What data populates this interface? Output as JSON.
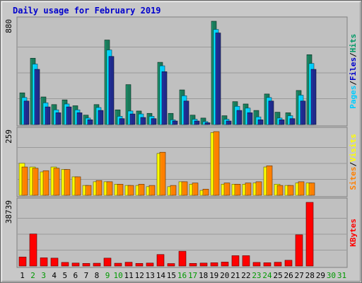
{
  "title": "Daily usage for February 2019",
  "colors": {
    "title": "#0000cc",
    "pages": "#1a7a5a",
    "files": "#00ccff",
    "hits": "#009966",
    "visits": "#ffff00",
    "sites": "#ff8000",
    "kbytes": "#ff0000",
    "weekday_label": "#000000",
    "weekend_label": "#009900",
    "panel_bg": "#c0c0c0"
  },
  "chart_data": [
    {
      "type": "bar",
      "panel": "hits-files-pages",
      "ylim": [
        0,
        880
      ],
      "max_label": "880",
      "axis_labels": [
        "Pages",
        "/",
        "Files",
        "/",
        "Hits"
      ],
      "categories": [
        "1",
        "2",
        "3",
        "4",
        "5",
        "6",
        "7",
        "8",
        "9",
        "10",
        "11",
        "12",
        "13",
        "14",
        "15",
        "16",
        "17",
        "18",
        "19",
        "20",
        "21",
        "22",
        "23",
        "24",
        "25",
        "26",
        "27",
        "28",
        "29",
        "30",
        "31"
      ],
      "series": [
        {
          "name": "Hits",
          "values": [
            270,
            565,
            235,
            170,
            210,
            160,
            80,
            170,
            720,
            125,
            340,
            115,
            95,
            530,
            95,
            295,
            80,
            55,
            880,
            75,
            195,
            175,
            120,
            260,
            105,
            100,
            290,
            595,
            0,
            0,
            0
          ]
        },
        {
          "name": "Files",
          "values": [
            230,
            515,
            185,
            125,
            175,
            125,
            55,
            145,
            635,
            70,
            115,
            90,
            70,
            500,
            40,
            245,
            45,
            25,
            810,
            45,
            155,
            140,
            65,
            230,
            55,
            75,
            250,
            520,
            0,
            0,
            0
          ]
        },
        {
          "name": "Pages",
          "values": [
            200,
            470,
            150,
            100,
            150,
            100,
            40,
            120,
            580,
            50,
            90,
            60,
            50,
            450,
            30,
            200,
            30,
            15,
            780,
            30,
            120,
            100,
            40,
            200,
            40,
            50,
            200,
            470,
            0,
            0,
            0
          ]
        }
      ]
    },
    {
      "type": "bar",
      "panel": "visits-sites",
      "ylim": [
        0,
        259
      ],
      "max_label": "259",
      "axis_labels": [
        "Sites",
        "/",
        "Visits"
      ],
      "categories": [
        "1",
        "2",
        "3",
        "4",
        "5",
        "6",
        "7",
        "8",
        "9",
        "10",
        "11",
        "12",
        "13",
        "14",
        "15",
        "16",
        "17",
        "18",
        "19",
        "20",
        "21",
        "22",
        "23",
        "24",
        "25",
        "26",
        "27",
        "28",
        "29",
        "30",
        "31"
      ],
      "series": [
        {
          "name": "Visits",
          "values": [
            130,
            115,
            95,
            115,
            105,
            75,
            40,
            55,
            55,
            45,
            40,
            40,
            35,
            170,
            35,
            55,
            45,
            20,
            255,
            45,
            45,
            45,
            50,
            115,
            45,
            40,
            50,
            50,
            0,
            0,
            0
          ]
        },
        {
          "name": "Sites",
          "values": [
            115,
            110,
            100,
            110,
            105,
            75,
            40,
            60,
            55,
            45,
            40,
            45,
            40,
            175,
            40,
            55,
            50,
            25,
            259,
            50,
            45,
            50,
            55,
            120,
            40,
            40,
            55,
            50,
            0,
            0,
            0
          ]
        }
      ]
    },
    {
      "type": "bar",
      "panel": "kbytes",
      "ylim": [
        0,
        38739
      ],
      "max_label": "38739",
      "axis_labels": [
        "KBytes"
      ],
      "categories": [
        "1",
        "2",
        "3",
        "4",
        "5",
        "6",
        "7",
        "8",
        "9",
        "10",
        "11",
        "12",
        "13",
        "14",
        "15",
        "16",
        "17",
        "18",
        "19",
        "20",
        "21",
        "22",
        "23",
        "24",
        "25",
        "26",
        "27",
        "28",
        "29",
        "30",
        "31"
      ],
      "series": [
        {
          "name": "KBytes",
          "values": [
            5500,
            19500,
            5000,
            4800,
            2200,
            1800,
            1600,
            1700,
            4800,
            1700,
            2300,
            1600,
            1800,
            7000,
            1500,
            9000,
            1600,
            1800,
            2000,
            2400,
            6300,
            6300,
            2200,
            2000,
            2300,
            3500,
            19000,
            38739,
            0,
            0,
            0
          ]
        }
      ]
    }
  ],
  "days": [
    {
      "label": "1",
      "weekend": false
    },
    {
      "label": "2",
      "weekend": true
    },
    {
      "label": "3",
      "weekend": true
    },
    {
      "label": "4",
      "weekend": false
    },
    {
      "label": "5",
      "weekend": false
    },
    {
      "label": "6",
      "weekend": false
    },
    {
      "label": "7",
      "weekend": false
    },
    {
      "label": "8",
      "weekend": false
    },
    {
      "label": "9",
      "weekend": true
    },
    {
      "label": "10",
      "weekend": true
    },
    {
      "label": "11",
      "weekend": false
    },
    {
      "label": "12",
      "weekend": false
    },
    {
      "label": "13",
      "weekend": false
    },
    {
      "label": "14",
      "weekend": false
    },
    {
      "label": "15",
      "weekend": false
    },
    {
      "label": "16",
      "weekend": true
    },
    {
      "label": "17",
      "weekend": true
    },
    {
      "label": "18",
      "weekend": false
    },
    {
      "label": "19",
      "weekend": false
    },
    {
      "label": "20",
      "weekend": false
    },
    {
      "label": "21",
      "weekend": false
    },
    {
      "label": "22",
      "weekend": false
    },
    {
      "label": "23",
      "weekend": true
    },
    {
      "label": "24",
      "weekend": true
    },
    {
      "label": "25",
      "weekend": false
    },
    {
      "label": "26",
      "weekend": false
    },
    {
      "label": "27",
      "weekend": false
    },
    {
      "label": "28",
      "weekend": false
    },
    {
      "label": "29",
      "weekend": false
    },
    {
      "label": "30",
      "weekend": true
    },
    {
      "label": "31",
      "weekend": true
    }
  ]
}
